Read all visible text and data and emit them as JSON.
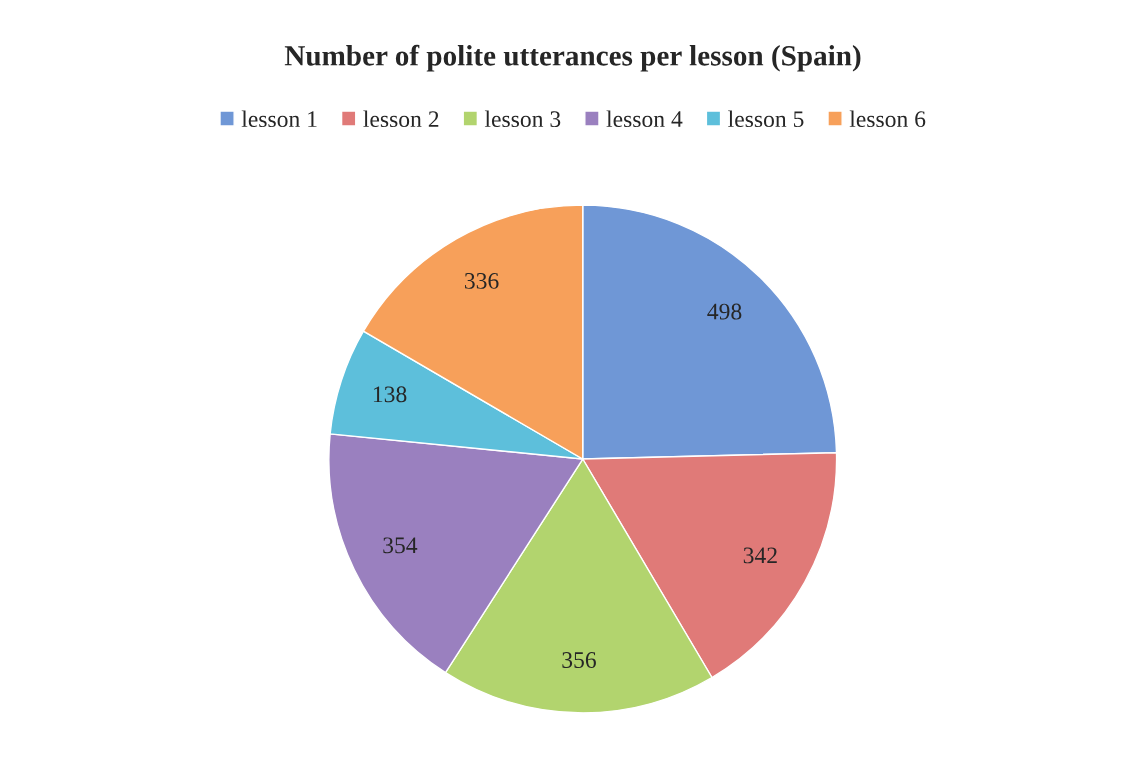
{
  "chart_data": {
    "type": "pie",
    "title": "Number of polite utterances per lesson (Spain)",
    "categories": [
      "lesson 1",
      "lesson 2",
      "lesson 3",
      "lesson 4",
      "lesson 5",
      "lesson 6"
    ],
    "values": [
      498,
      342,
      356,
      354,
      138,
      336
    ],
    "colors": [
      "#6f97d6",
      "#e07a78",
      "#b2d46e",
      "#9a80bf",
      "#5dbfdb",
      "#f7a05a"
    ],
    "data_labels": true,
    "legend": "top"
  }
}
